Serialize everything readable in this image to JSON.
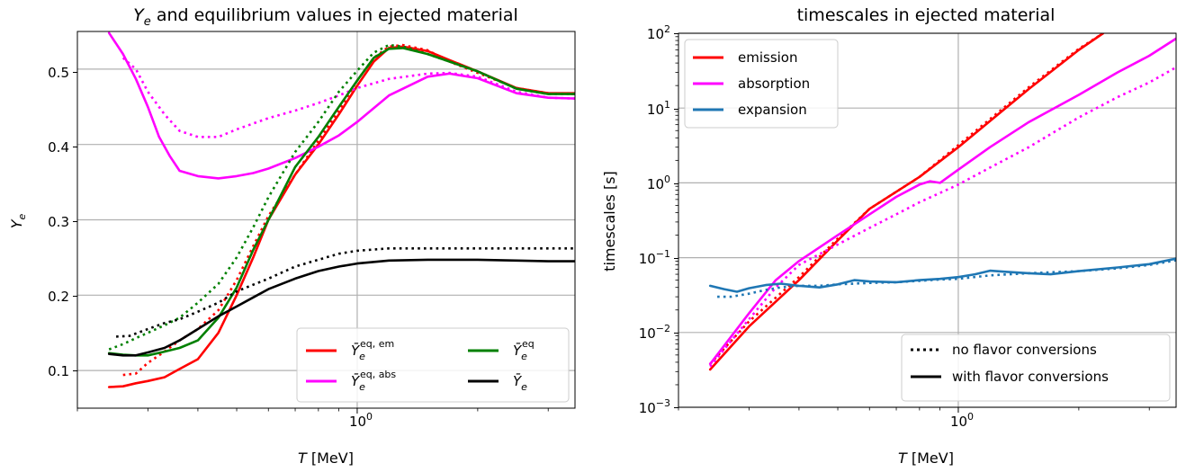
{
  "chart_data": [
    {
      "type": "line",
      "title": "Y_e and equilibrium values in ejected material",
      "xlabel": "T [MeV]",
      "ylabel": "Y_e",
      "xscale": "log",
      "xlim": [
        0.2,
        3.5
      ],
      "ylim": [
        0.05,
        0.55
      ],
      "xticks": [
        {
          "value": 1.0,
          "label": "10^0"
        }
      ],
      "yticks": [
        0.1,
        0.2,
        0.3,
        0.4,
        0.5
      ],
      "grid": true,
      "legend_position": "lower right",
      "line_styles": {
        "dotted": "no flavor conversions",
        "solid": "with flavor conversions"
      },
      "series": [
        {
          "name": "Ȳ_e^{eq,em}",
          "color": "#ff0000",
          "style": "solid",
          "x": [
            0.24,
            0.26,
            0.28,
            0.3,
            0.33,
            0.36,
            0.4,
            0.45,
            0.5,
            0.55,
            0.6,
            0.7,
            0.8,
            0.9,
            1.0,
            1.1,
            1.2,
            1.3,
            1.5,
            1.7,
            2.0,
            2.5,
            3.0,
            3.5
          ],
          "y": [
            0.078,
            0.079,
            0.083,
            0.086,
            0.091,
            0.102,
            0.115,
            0.15,
            0.2,
            0.25,
            0.3,
            0.36,
            0.4,
            0.44,
            0.478,
            0.51,
            0.528,
            0.53,
            0.524,
            0.512,
            0.497,
            0.475,
            0.468,
            0.468
          ]
        },
        {
          "name": "",
          "color": "#ff0000",
          "style": "dotted",
          "x": [
            0.26,
            0.28,
            0.3,
            0.33,
            0.36,
            0.4,
            0.45,
            0.5,
            0.55,
            0.6,
            0.7,
            0.8,
            0.9,
            1.0,
            1.1,
            1.2,
            1.3,
            1.5,
            1.7,
            2.0,
            2.5,
            3.0,
            3.5
          ],
          "y": [
            0.094,
            0.096,
            0.11,
            0.125,
            0.14,
            0.155,
            0.18,
            0.22,
            0.265,
            0.305,
            0.36,
            0.405,
            0.445,
            0.485,
            0.515,
            0.53,
            0.532,
            0.525,
            0.51,
            0.495,
            0.475,
            0.468,
            0.467
          ]
        },
        {
          "name": "Ȳ_e^{eq,abs}",
          "color": "#ff00ff",
          "style": "solid",
          "x": [
            0.24,
            0.26,
            0.28,
            0.3,
            0.32,
            0.34,
            0.36,
            0.4,
            0.45,
            0.5,
            0.55,
            0.6,
            0.7,
            0.8,
            0.9,
            1.0,
            1.2,
            1.5,
            1.7,
            2.0,
            2.5,
            3.0,
            3.5
          ],
          "y": [
            0.548,
            0.52,
            0.487,
            0.45,
            0.41,
            0.385,
            0.365,
            0.358,
            0.355,
            0.358,
            0.362,
            0.368,
            0.382,
            0.397,
            0.412,
            0.43,
            0.465,
            0.49,
            0.494,
            0.488,
            0.468,
            0.462,
            0.461
          ]
        },
        {
          "name": "",
          "color": "#ff00ff",
          "style": "dotted",
          "x": [
            0.26,
            0.28,
            0.3,
            0.33,
            0.36,
            0.4,
            0.45,
            0.5,
            0.6,
            0.7,
            0.8,
            0.9,
            1.0,
            1.2,
            1.5,
            1.7,
            2.0,
            2.5,
            3.0,
            3.5
          ],
          "y": [
            0.515,
            0.5,
            0.47,
            0.44,
            0.418,
            0.41,
            0.41,
            0.42,
            0.435,
            0.445,
            0.455,
            0.465,
            0.475,
            0.487,
            0.494,
            0.495,
            0.49,
            0.47,
            0.462,
            0.461
          ]
        },
        {
          "name": "Ȳ_e^{eq}",
          "color": "#008000",
          "style": "solid",
          "x": [
            0.24,
            0.26,
            0.28,
            0.3,
            0.33,
            0.36,
            0.4,
            0.45,
            0.5,
            0.55,
            0.6,
            0.7,
            0.8,
            0.9,
            1.0,
            1.1,
            1.2,
            1.3,
            1.5,
            1.7,
            2.0,
            2.5,
            3.0,
            3.5
          ],
          "y": [
            0.123,
            0.121,
            0.12,
            0.12,
            0.125,
            0.13,
            0.14,
            0.17,
            0.21,
            0.26,
            0.3,
            0.37,
            0.41,
            0.45,
            0.485,
            0.515,
            0.527,
            0.528,
            0.52,
            0.51,
            0.497,
            0.474,
            0.467,
            0.467
          ]
        },
        {
          "name": "",
          "color": "#008000",
          "style": "dotted",
          "x": [
            0.24,
            0.26,
            0.28,
            0.3,
            0.33,
            0.36,
            0.4,
            0.45,
            0.5,
            0.55,
            0.6,
            0.7,
            0.8,
            0.9,
            1.0,
            1.1,
            1.2,
            1.3,
            1.5,
            1.7,
            2.0,
            2.5,
            3.0,
            3.5
          ],
          "y": [
            0.128,
            0.135,
            0.143,
            0.15,
            0.16,
            0.17,
            0.19,
            0.215,
            0.25,
            0.29,
            0.33,
            0.39,
            0.43,
            0.47,
            0.498,
            0.522,
            0.532,
            0.53,
            0.52,
            0.51,
            0.497,
            0.474,
            0.467,
            0.467
          ]
        },
        {
          "name": "Ȳ_e",
          "color": "#000000",
          "style": "solid",
          "x": [
            0.24,
            0.26,
            0.28,
            0.3,
            0.33,
            0.36,
            0.4,
            0.45,
            0.5,
            0.55,
            0.6,
            0.7,
            0.8,
            0.9,
            1.0,
            1.2,
            1.5,
            2.0,
            2.5,
            3.0,
            3.5
          ],
          "y": [
            0.122,
            0.12,
            0.12,
            0.124,
            0.13,
            0.14,
            0.155,
            0.172,
            0.185,
            0.197,
            0.208,
            0.222,
            0.232,
            0.238,
            0.242,
            0.246,
            0.247,
            0.247,
            0.246,
            0.245,
            0.245
          ]
        },
        {
          "name": "",
          "color": "#000000",
          "style": "dotted",
          "x": [
            0.25,
            0.27,
            0.3,
            0.33,
            0.36,
            0.4,
            0.45,
            0.5,
            0.6,
            0.7,
            0.8,
            0.9,
            1.0,
            1.2,
            1.5,
            2.0,
            3.0,
            3.5
          ],
          "y": [
            0.145,
            0.146,
            0.155,
            0.163,
            0.168,
            0.178,
            0.19,
            0.205,
            0.222,
            0.238,
            0.247,
            0.255,
            0.259,
            0.262,
            0.262,
            0.262,
            0.262,
            0.262
          ]
        }
      ]
    },
    {
      "type": "line",
      "title": "timescales in ejected material",
      "xlabel": "T [MeV]",
      "ylabel": "timescales [s]",
      "xscale": "log",
      "yscale": "log",
      "xlim": [
        0.2,
        3.5
      ],
      "ylim": [
        0.001,
        100
      ],
      "xticks": [
        {
          "value": 1.0,
          "label": "10^0"
        }
      ],
      "yticks": [
        0.001,
        0.01,
        0.1,
        1,
        10,
        100
      ],
      "grid": true,
      "legend_position": "upper left",
      "style_legend_position": "lower right",
      "line_styles": {
        "dotted": "no flavor conversions",
        "solid": "with flavor conversions"
      },
      "series": [
        {
          "name": "emission",
          "color": "#ff0000",
          "style": "solid",
          "x": [
            0.24,
            0.3,
            0.4,
            0.5,
            0.6,
            0.8,
            1.0,
            1.5,
            2.0,
            2.3
          ],
          "y": [
            0.0032,
            0.012,
            0.05,
            0.17,
            0.45,
            1.2,
            3.0,
            18,
            60,
            100
          ]
        },
        {
          "name": "",
          "color": "#ff0000",
          "style": "dotted",
          "x": [
            0.24,
            0.3,
            0.4,
            0.5,
            0.6,
            0.8,
            1.0,
            1.5,
            2.0,
            2.3
          ],
          "y": [
            0.0038,
            0.014,
            0.055,
            0.18,
            0.45,
            1.2,
            3.2,
            19,
            62,
            100
          ]
        },
        {
          "name": "absorption",
          "color": "#ff00ff",
          "style": "solid",
          "x": [
            0.24,
            0.3,
            0.35,
            0.4,
            0.5,
            0.6,
            0.7,
            0.8,
            0.85,
            0.9,
            1.0,
            1.2,
            1.5,
            2.0,
            2.5,
            3.0,
            3.5
          ],
          "y": [
            0.0038,
            0.018,
            0.05,
            0.09,
            0.2,
            0.38,
            0.65,
            0.95,
            1.05,
            1.0,
            1.5,
            3.0,
            6.5,
            15,
            30,
            50,
            85
          ]
        },
        {
          "name": "",
          "color": "#ff00ff",
          "style": "dotted",
          "x": [
            0.24,
            0.3,
            0.35,
            0.4,
            0.5,
            0.6,
            0.7,
            0.8,
            1.0,
            1.2,
            1.5,
            2.0,
            2.5,
            3.0,
            3.5
          ],
          "y": [
            0.0035,
            0.015,
            0.04,
            0.08,
            0.15,
            0.25,
            0.38,
            0.55,
            0.95,
            1.6,
            3.0,
            7.5,
            14,
            22,
            35
          ]
        },
        {
          "name": "expansion",
          "color": "#1f77b4",
          "style": "solid",
          "x": [
            0.24,
            0.26,
            0.28,
            0.3,
            0.33,
            0.36,
            0.4,
            0.45,
            0.5,
            0.55,
            0.6,
            0.7,
            0.8,
            0.9,
            1.0,
            1.1,
            1.2,
            1.3,
            1.5,
            1.7,
            2.0,
            2.5,
            3.0,
            3.5
          ],
          "y": [
            0.042,
            0.038,
            0.035,
            0.039,
            0.043,
            0.045,
            0.042,
            0.04,
            0.044,
            0.05,
            0.048,
            0.047,
            0.05,
            0.052,
            0.055,
            0.06,
            0.067,
            0.065,
            0.062,
            0.06,
            0.066,
            0.074,
            0.082,
            0.097
          ]
        },
        {
          "name": "",
          "color": "#1f77b4",
          "style": "dotted",
          "x": [
            0.25,
            0.27,
            0.3,
            0.33,
            0.36,
            0.4,
            0.45,
            0.5,
            0.6,
            0.7,
            0.8,
            0.9,
            1.0,
            1.2,
            1.5,
            2.0,
            2.5,
            3.0,
            3.5
          ],
          "y": [
            0.03,
            0.03,
            0.033,
            0.037,
            0.04,
            0.042,
            0.042,
            0.044,
            0.046,
            0.047,
            0.049,
            0.051,
            0.052,
            0.058,
            0.062,
            0.066,
            0.072,
            0.08,
            0.092
          ]
        }
      ]
    }
  ],
  "panels": [
    {
      "title_main": "Y",
      "title_sub": "e",
      "title_rest": " and equilibrium values in ejected material",
      "ylabel_main": "Y",
      "ylabel_sub": "e",
      "xlabel_var": "T",
      "xlabel_unit": " [MeV]",
      "xtick_base": "10",
      "xtick_exp": "0",
      "ytick_labels": [
        "0.1",
        "0.2",
        "0.3",
        "0.4",
        "0.5"
      ],
      "legend": [
        {
          "base": "Ȳ",
          "sub": "e",
          "sup": "eq, em"
        },
        {
          "base": "Ȳ",
          "sub": "e",
          "sup": "eq, abs"
        },
        {
          "base": "Ȳ",
          "sub": "e",
          "sup": "eq"
        },
        {
          "base": "Ȳ",
          "sub": "e",
          "sup": ""
        }
      ]
    },
    {
      "title": "timescales in ejected material",
      "ylabel": "timescales [s]",
      "xlabel_var": "T",
      "xlabel_unit": " [MeV]",
      "xtick_base": "10",
      "xtick_exp": "0",
      "ytick_base": "10",
      "ytick_exps": [
        "−3",
        "−2",
        "−1",
        "0",
        "1",
        "2"
      ],
      "legend": [
        "emission",
        "absorption",
        "expansion"
      ],
      "style_legend": [
        "no flavor conversions",
        "with flavor conversions"
      ]
    }
  ]
}
